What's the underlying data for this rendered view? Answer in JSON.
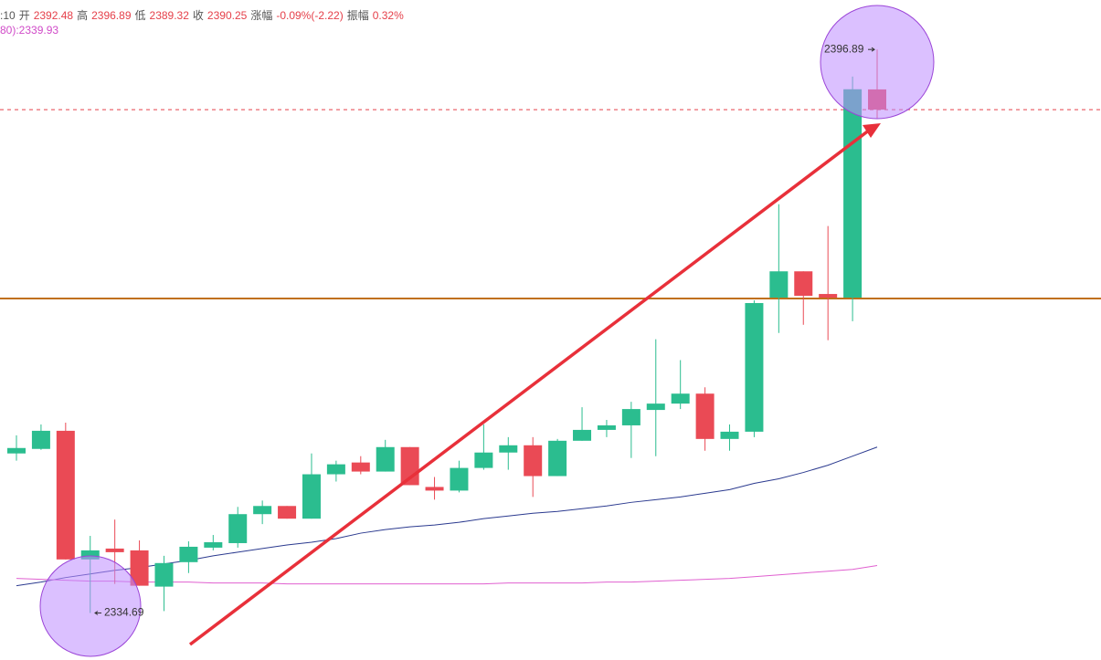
{
  "header": {
    "items": [
      ":10",
      "开",
      "2392.48",
      "高",
      "2396.89",
      "低",
      "2389.32",
      "收",
      "2390.25",
      "涨幅",
      "-0.09%(-2.22)",
      "振幅",
      "0.32%"
    ],
    "ma_label": "80):2339.93"
  },
  "chart_data": {
    "type": "candlestick",
    "ylim": [
      2329.5,
      2402.35
    ],
    "up_color": "#2bbd8f",
    "down_color": "#ea4a55",
    "candles": {
      "open": [
        2352.3,
        2352.8,
        2354.8,
        2340.6,
        2341.8,
        2341.6,
        2337.6,
        2340.3,
        2341.9,
        2342.4,
        2345.6,
        2346.5,
        2345.1,
        2350.0,
        2351.3,
        2350.3,
        2353.0,
        2348.6,
        2348.2,
        2350.7,
        2352.4,
        2353.2,
        2349.8,
        2353.7,
        2354.9,
        2355.4,
        2357.1,
        2357.8,
        2358.9,
        2353.9,
        2354.7,
        2369.5,
        2372.4,
        2369.9,
        2369.5,
        2392.48
      ],
      "high": [
        2354.3,
        2355.5,
        2355.7,
        2343.2,
        2345.0,
        2342.7,
        2341.0,
        2342.6,
        2343.3,
        2346.4,
        2347.1,
        2346.5,
        2352.3,
        2351.5,
        2352.0,
        2353.8,
        2353.0,
        2349.7,
        2351.5,
        2355.5,
        2354.1,
        2354.1,
        2353.9,
        2357.4,
        2356.0,
        2358.0,
        2364.9,
        2362.6,
        2359.6,
        2355.5,
        2369.2,
        2379.8,
        2372.4,
        2377.4,
        2393.9,
        2396.89
      ],
      "low": [
        2351.5,
        2352.7,
        2340.6,
        2334.69,
        2337.9,
        2337.7,
        2334.9,
        2339.1,
        2341.6,
        2341.9,
        2344.5,
        2345.1,
        2345.1,
        2349.2,
        2350.0,
        2350.3,
        2348.8,
        2347.2,
        2348.0,
        2350.5,
        2350.5,
        2347.5,
        2349.8,
        2353.7,
        2354.1,
        2351.8,
        2352.0,
        2357.2,
        2352.6,
        2352.6,
        2354.1,
        2365.6,
        2366.5,
        2364.8,
        2366.9,
        2389.32
      ],
      "close": [
        2352.9,
        2354.8,
        2340.6,
        2341.6,
        2341.4,
        2337.7,
        2340.2,
        2342.0,
        2342.5,
        2345.6,
        2346.5,
        2345.1,
        2350.0,
        2351.1,
        2350.3,
        2353.0,
        2348.8,
        2348.2,
        2350.7,
        2352.4,
        2353.2,
        2349.8,
        2353.7,
        2354.9,
        2355.4,
        2357.2,
        2357.8,
        2358.9,
        2353.9,
        2354.7,
        2368.9,
        2372.4,
        2369.7,
        2369.5,
        2392.5,
        2390.25
      ]
    },
    "ma": [
      {
        "color": "#2b3a8f",
        "values": [
          2337.7,
          2338.1,
          2338.6,
          2339.0,
          2339.4,
          2339.7,
          2340.1,
          2340.5,
          2341.0,
          2341.4,
          2341.8,
          2342.2,
          2342.5,
          2342.9,
          2343.5,
          2343.9,
          2344.2,
          2344.4,
          2344.7,
          2345.1,
          2345.4,
          2345.7,
          2345.9,
          2346.2,
          2346.5,
          2346.9,
          2347.2,
          2347.5,
          2347.9,
          2348.3,
          2349.0,
          2349.5,
          2350.2,
          2351.0,
          2352.0,
          2353.0
        ]
      },
      {
        "color": "#e060d0",
        "values": [
          2338.5,
          2338.4,
          2338.3,
          2338.2,
          2338.2,
          2338.1,
          2338.1,
          2338.1,
          2338.0,
          2338.0,
          2338.0,
          2337.9,
          2337.9,
          2337.9,
          2337.9,
          2337.9,
          2337.9,
          2337.9,
          2337.9,
          2337.9,
          2338.0,
          2338.0,
          2338.0,
          2338.0,
          2338.1,
          2338.1,
          2338.2,
          2338.3,
          2338.4,
          2338.5,
          2338.7,
          2338.9,
          2339.1,
          2339.3,
          2339.5,
          2339.93
        ]
      }
    ],
    "hlines": [
      {
        "value": 2369.4,
        "color": "#c0701a",
        "dashed": false
      },
      {
        "value": 2390.25,
        "color": "#e5404a",
        "dashed": true
      }
    ],
    "max_label": "2396.89",
    "min_label": "2334.69"
  }
}
